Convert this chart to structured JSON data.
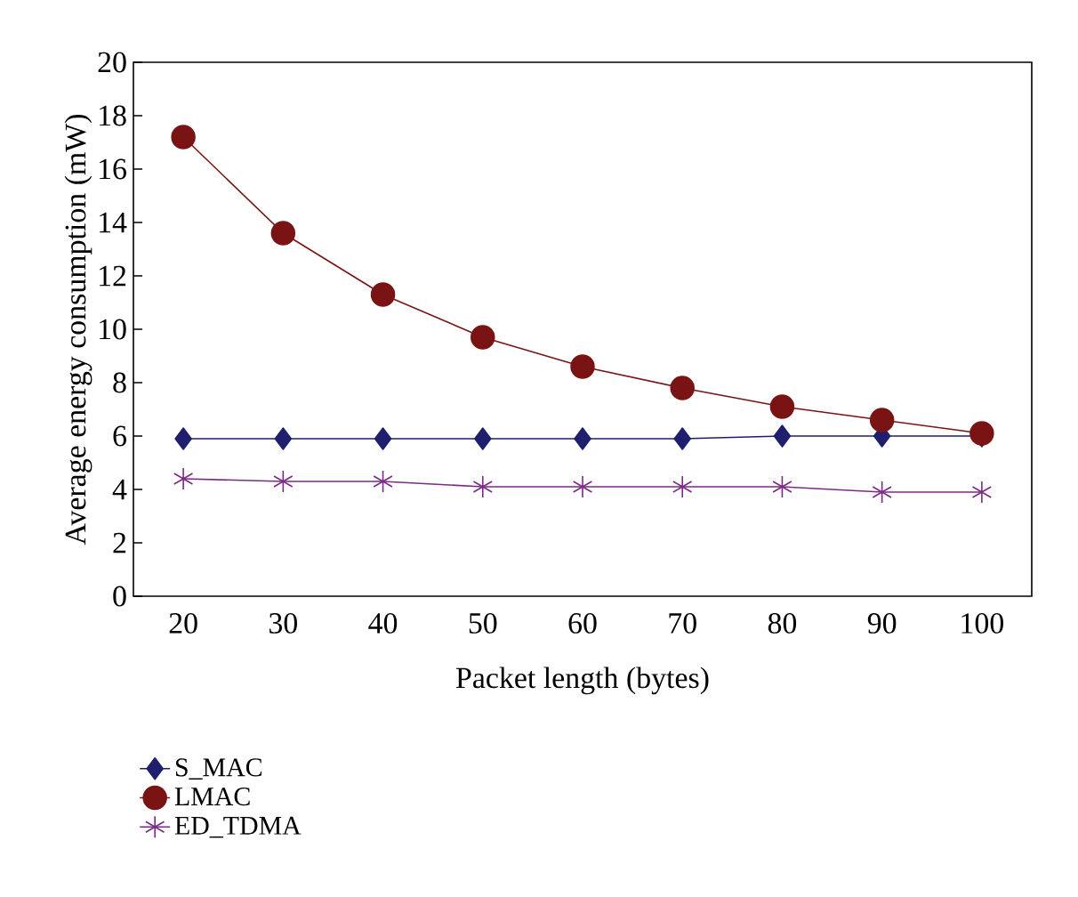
{
  "chart_data": {
    "type": "line",
    "xlabel": "Packet length (bytes)",
    "ylabel": "Average energy consumption (mW)",
    "categories": [
      "20",
      "30",
      "40",
      "50",
      "60",
      "70",
      "80",
      "90",
      "100"
    ],
    "series": [
      {
        "name": "S_MAC",
        "color": "#1f1f6e",
        "marker": "diamond",
        "values": [
          5.9,
          5.9,
          5.9,
          5.9,
          5.9,
          5.9,
          6.0,
          6.0,
          6.0
        ]
      },
      {
        "name": "LMAC",
        "color": "#7a1414",
        "marker": "circle",
        "values": [
          17.2,
          13.6,
          11.3,
          9.7,
          8.6,
          7.8,
          7.1,
          6.6,
          6.1
        ]
      },
      {
        "name": "ED_TDMA",
        "color": "#7b2a85",
        "marker": "cross",
        "values": [
          4.4,
          4.3,
          4.3,
          4.1,
          4.1,
          4.1,
          4.1,
          3.9,
          3.9
        ]
      }
    ],
    "ylim": [
      0,
      20
    ],
    "yticks": [
      0,
      2,
      4,
      6,
      8,
      10,
      12,
      14,
      16,
      18,
      20
    ],
    "grid": false,
    "legend": "bottom left",
    "line_style": "solid"
  }
}
